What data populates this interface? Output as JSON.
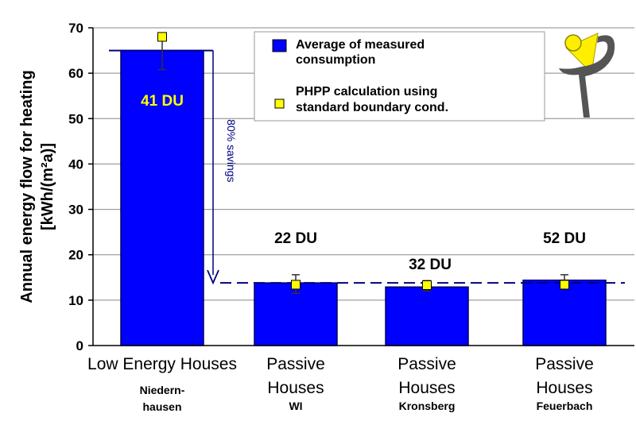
{
  "chart_data": {
    "type": "bar",
    "ylabel_line1": "Annual energy flow for heating",
    "ylabel_line2": "[kWh/(m²a)]",
    "ylim": [
      0,
      70
    ],
    "yticks": [
      0,
      10,
      20,
      30,
      40,
      50,
      60,
      70
    ],
    "grid": true,
    "categories": [
      {
        "main1": "Low Energy Houses",
        "main2": "",
        "sub": "Niedern-\nhausen",
        "sub1": "Niedern-",
        "sub2": "hausen"
      },
      {
        "main1": "Passive",
        "main2": "Houses",
        "sub": "WI",
        "sub1": "WI",
        "sub2": ""
      },
      {
        "main1": "Passive",
        "main2": "Houses",
        "sub": "Kronsberg",
        "sub1": "Kronsberg",
        "sub2": ""
      },
      {
        "main1": "Passive",
        "main2": "Houses",
        "sub": "Feuerbach",
        "sub1": "Feuerbach",
        "sub2": ""
      }
    ],
    "series": [
      {
        "name": "Average of measured consumption",
        "values": [
          65,
          13.8,
          12.9,
          14.4
        ]
      },
      {
        "name": "PHPP calculation using standard boundary cond.",
        "values": [
          68,
          13.4,
          13.3,
          13.4
        ]
      }
    ],
    "error_bars": [
      [
        60.8,
        68
      ],
      [
        11.5,
        15.6
      ],
      [
        12.0,
        14.3
      ],
      [
        12.8,
        15.6
      ]
    ],
    "bar_labels": [
      "41 DU",
      "22 DU",
      "32 DU",
      "52 DU"
    ],
    "legend": {
      "position": "top-right",
      "entries": [
        {
          "line1": "Average of measured",
          "line2": "consumption"
        },
        {
          "line1": "PHPP calculation using",
          "line2": "standard boundary cond."
        }
      ]
    },
    "annotation": {
      "text": "80% savings",
      "from": 65,
      "to": 13.8
    },
    "colors": {
      "bar": "#0000ff",
      "bar_border": "#000060",
      "marker": "#ffff00",
      "arrow": "#000080",
      "bar_label_first": "#ffff00",
      "bar_label_other": "#000000",
      "plot_background": "#ffffff",
      "gridline": "#888888"
    }
  },
  "logo": {
    "name": "passive-house-logo-icon",
    "colors": [
      "#ffee00",
      "#555555"
    ]
  }
}
